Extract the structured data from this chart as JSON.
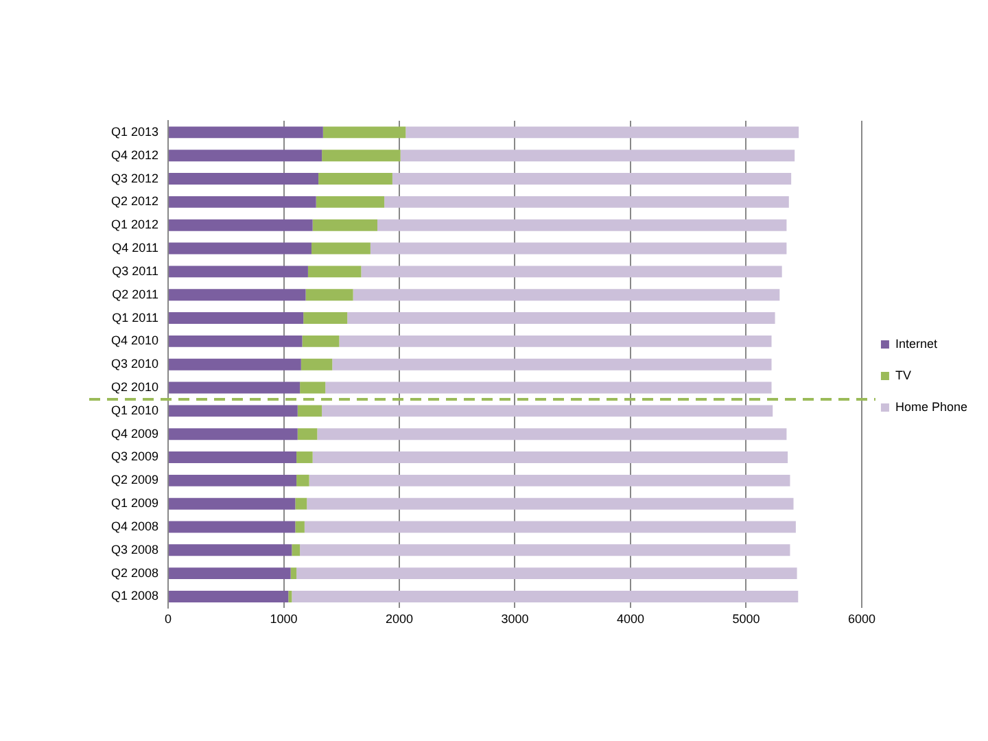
{
  "chart_data": {
    "type": "bar",
    "orientation": "horizontal",
    "stacked": true,
    "categories": [
      "Q1 2013",
      "Q4 2012",
      "Q3 2012",
      "Q2 2012",
      "Q1 2012",
      "Q4 2011",
      "Q3 2011",
      "Q2 2011",
      "Q1 2011",
      "Q4 2010",
      "Q3 2010",
      "Q2 2010",
      "Q1 2010",
      "Q4 2009",
      "Q3 2009",
      "Q2 2009",
      "Q1 2009",
      "Q4 2008",
      "Q3 2008",
      "Q2 2008",
      "Q1 2008"
    ],
    "series": [
      {
        "name": "Internet",
        "color": "#7b5fa0",
        "values": [
          1340,
          1330,
          1300,
          1280,
          1250,
          1240,
          1210,
          1190,
          1170,
          1160,
          1150,
          1140,
          1120,
          1120,
          1110,
          1110,
          1100,
          1100,
          1070,
          1060,
          1040
        ]
      },
      {
        "name": "TV",
        "color": "#9bbb59",
        "values": [
          715,
          680,
          640,
          590,
          560,
          510,
          460,
          410,
          380,
          320,
          270,
          220,
          210,
          170,
          140,
          110,
          100,
          80,
          70,
          50,
          30
        ]
      },
      {
        "name": "Home Phone",
        "color": "#ccc0da",
        "values": [
          3400,
          3410,
          3450,
          3500,
          3540,
          3600,
          3640,
          3690,
          3700,
          3740,
          3800,
          3860,
          3900,
          4060,
          4110,
          4160,
          4210,
          4250,
          4240,
          4330,
          4380
        ]
      }
    ],
    "xlim": [
      0,
      6000
    ],
    "xticks": [
      0,
      1000,
      2000,
      3000,
      4000,
      5000,
      6000
    ],
    "grid": "x",
    "legend": "right",
    "ref_lines": [
      {
        "axis": "y",
        "value": "Q1 2010",
        "color": "#9bbb59",
        "line_style": "dashed"
      }
    ]
  }
}
